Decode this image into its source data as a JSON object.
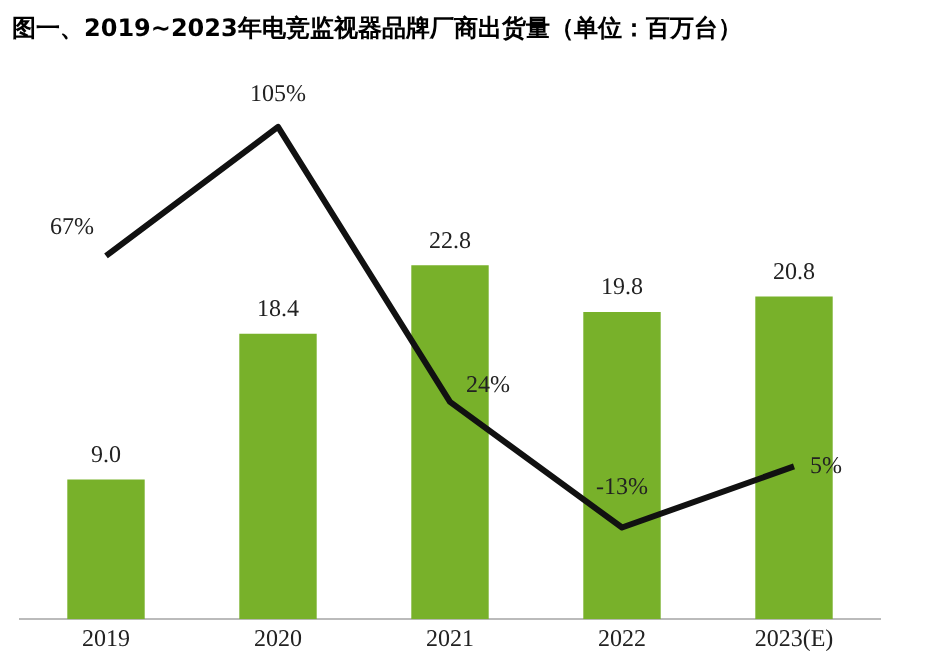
{
  "chart_data": {
    "type": "bar",
    "title": "图一、2019~2023年电竞监视器品牌厂商出货量（单位：百万台）",
    "categories": [
      "2019",
      "2020",
      "2021",
      "2022",
      "2023(E)"
    ],
    "series": [
      {
        "color": "#78b12a",
        "values": [
          9.0,
          18.4,
          22.8,
          19.8,
          20.8
        ],
        "value_labels": [
          "9.0",
          "18.4",
          "22.8",
          "19.8",
          "20.8"
        ]
      },
      {
        "type": "line",
        "axis": "y2",
        "color": "#111111",
        "values": [
          67,
          105,
          24,
          -13,
          5
        ],
        "value_labels": [
          "67%",
          "105%",
          "24%",
          "-13%",
          "5%"
        ]
      }
    ],
    "tick_labels": "x",
    "grid": false,
    "legend": false,
    "marker": "none",
    "line_style": "solid"
  }
}
